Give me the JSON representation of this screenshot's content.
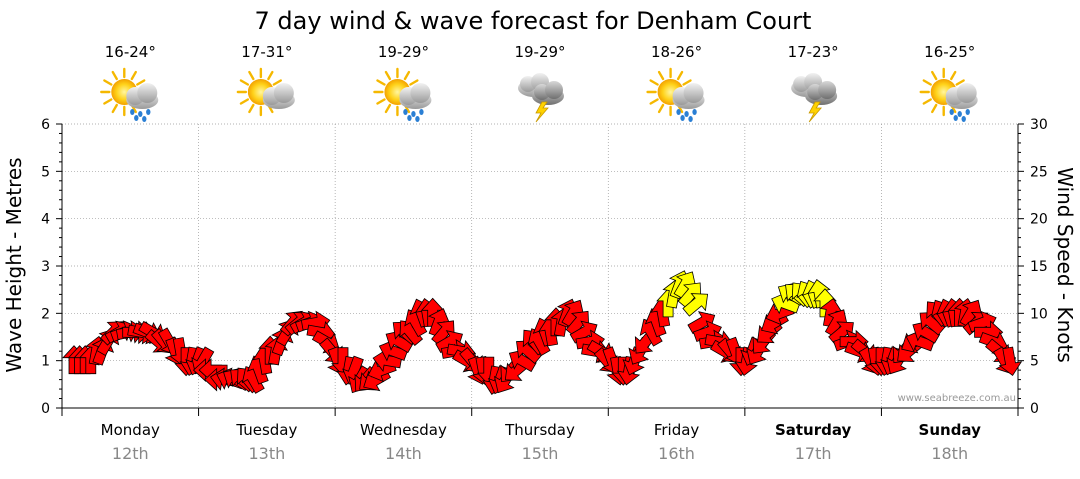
{
  "chart_data": {
    "type": "arrow-series",
    "title": "7 day wind & wave forecast for Denham Court",
    "ylabel_left": "Wave Height - Metres",
    "ylabel_right": "Wind Speed - Knots",
    "y_left_ticks": [
      "0",
      "1",
      "2",
      "3",
      "4",
      "5",
      "6"
    ],
    "y_right_ticks": [
      "0",
      "5",
      "10",
      "15",
      "20",
      "25",
      "30"
    ],
    "ylim_left": [
      0,
      6
    ],
    "ylim_right": [
      0,
      30
    ],
    "credit": "www.seabreeze.com.au",
    "colors": {
      "low_wind": "#ff0000",
      "high_wind": "#ffff00",
      "outline": "#000000",
      "grid": "#999999"
    },
    "days": [
      {
        "day": "Monday",
        "date": "12th",
        "temp": "16-24°",
        "icon": "sun-cloud-rain-icon",
        "bold": false
      },
      {
        "day": "Tuesday",
        "date": "13th",
        "temp": "17-31°",
        "icon": "sun-cloud-icon",
        "bold": false
      },
      {
        "day": "Wednesday",
        "date": "14th",
        "temp": "19-29°",
        "icon": "sun-cloud-rain-icon",
        "bold": false
      },
      {
        "day": "Thursday",
        "date": "15th",
        "temp": "19-29°",
        "icon": "storm-cloud-icon",
        "bold": false
      },
      {
        "day": "Friday",
        "date": "16th",
        "temp": "18-26°",
        "icon": "sun-cloud-rain-icon",
        "bold": false
      },
      {
        "day": "Saturday",
        "date": "17th",
        "temp": "17-23°",
        "icon": "storm-cloud-icon",
        "bold": true
      },
      {
        "day": "Sunday",
        "date": "18th",
        "temp": "16-25°",
        "icon": "sun-cloud-rain-icon",
        "bold": true
      }
    ],
    "wind_series": {
      "unit": "knots",
      "note": "approximate wind speed (knots) and arrow direction (degrees, 0=right, 90=up) per sample; 24 samples per day",
      "speeds": [
        5,
        5,
        5,
        5,
        6,
        6,
        7,
        8,
        8,
        8,
        8,
        8,
        8,
        8,
        8,
        7,
        7,
        7,
        6,
        6,
        5,
        5,
        5,
        5,
        4,
        4,
        3,
        3,
        3,
        3,
        3,
        3,
        3,
        4,
        5,
        6,
        6,
        7,
        8,
        9,
        9,
        9,
        9,
        9,
        8,
        7,
        6,
        5,
        5,
        4,
        4,
        3,
        3,
        3,
        3,
        4,
        5,
        6,
        7,
        8,
        8,
        9,
        10,
        10,
        10,
        9,
        8,
        7,
        6,
        6,
        5,
        5,
        4,
        4,
        4,
        3,
        3,
        3,
        4,
        4,
        5,
        6,
        7,
        7,
        8,
        8,
        9,
        9,
        10,
        10,
        9,
        8,
        7,
        6,
        6,
        5,
        5,
        4,
        4,
        4,
        5,
        6,
        7,
        8,
        9,
        10,
        11,
        12,
        13,
        13,
        12,
        11,
        9,
        8,
        7,
        7,
        6,
        6,
        6,
        5,
        5,
        6,
        6,
        7,
        8,
        9,
        10,
        11,
        12,
        12,
        12,
        12,
        12,
        12,
        11,
        10,
        9,
        8,
        7,
        7,
        6,
        6,
        5,
        5,
        5,
        5,
        5,
        5,
        6,
        6,
        7,
        7,
        8,
        9,
        10,
        10,
        10,
        10,
        10,
        10,
        10,
        9,
        9,
        8,
        7,
        6,
        5,
        5
      ],
      "directions": [
        90,
        90,
        90,
        90,
        80,
        70,
        60,
        45,
        30,
        20,
        10,
        0,
        -10,
        -20,
        -30,
        -40,
        -50,
        -60,
        -70,
        -80,
        -90,
        -100,
        -110,
        -120,
        180,
        180,
        180,
        170,
        160,
        150,
        140,
        130,
        120,
        110,
        100,
        90,
        80,
        70,
        60,
        50,
        40,
        30,
        20,
        10,
        -10,
        -30,
        -50,
        -70,
        -90,
        -100,
        -110,
        -120,
        -130,
        -140,
        -150,
        -160,
        170,
        160,
        150,
        140,
        130,
        120,
        110,
        100,
        90,
        70,
        50,
        30,
        10,
        -10,
        -30,
        -50,
        -70,
        -80,
        -90,
        -100,
        -110,
        -120,
        -130,
        -140,
        150,
        140,
        130,
        120,
        110,
        100,
        90,
        80,
        70,
        60,
        50,
        30,
        10,
        -10,
        -30,
        -50,
        -70,
        -80,
        -90,
        -100,
        -110,
        -120,
        -130,
        120,
        110,
        100,
        90,
        80,
        70,
        60,
        50,
        40,
        30,
        20,
        10,
        -10,
        -30,
        -50,
        -70,
        -90,
        -100,
        -110,
        -120,
        -130,
        -140,
        -150,
        -160,
        160,
        150,
        140,
        130,
        120,
        110,
        100,
        90,
        80,
        60,
        40,
        20,
        0,
        -20,
        -40,
        -60,
        -80,
        -90,
        -100,
        -110,
        -120,
        -130,
        -140,
        -150,
        160,
        150,
        140,
        130,
        120,
        110,
        100,
        90,
        80,
        60,
        40,
        20,
        0,
        -20,
        -40,
        -60,
        -80
      ],
      "high_wind_threshold_knots": 11
    }
  }
}
